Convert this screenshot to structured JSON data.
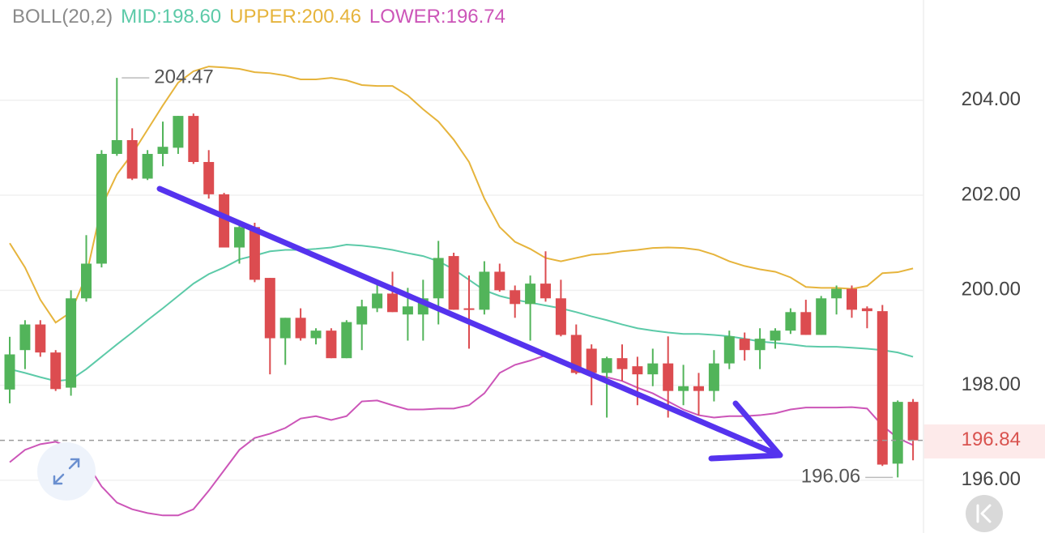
{
  "chart_data": {
    "type": "candlestick",
    "title": "BOLL(20,2)",
    "up_color": "#52b45a",
    "down_color": "#dc4c50",
    "open": [
      197.91,
      198.74,
      199.28,
      198.69,
      197.95,
      199.83,
      200.56,
      202.87,
      203.16,
      202.35,
      202.87,
      203.0,
      203.67,
      202.7,
      202.02,
      200.9,
      201.33,
      200.26,
      198.99,
      199.42,
      198.99,
      199.15,
      198.57,
      199.28,
      199.62,
      199.93,
      199.49,
      199.49,
      199.83,
      200.72,
      199.62,
      199.59,
      200.39,
      200.0,
      199.71,
      200.14,
      199.83,
      199.06,
      198.77,
      198.26,
      198.57,
      198.4,
      198.23,
      198.46,
      197.88,
      197.98,
      197.88,
      198.46,
      198.98,
      198.74,
      198.94,
      199.15,
      199.54,
      199.06,
      199.83,
      200.03,
      199.62,
      199.56,
      196.35,
      197.65
    ],
    "high": [
      199.02,
      199.37,
      199.37,
      198.74,
      200.0,
      201.16,
      202.95,
      204.47,
      203.41,
      202.95,
      203.55,
      203.67,
      203.72,
      202.95,
      202.05,
      201.37,
      201.42,
      200.26,
      199.42,
      199.62,
      199.2,
      199.2,
      199.37,
      199.8,
      200.22,
      200.39,
      200.05,
      200.22,
      201.04,
      200.79,
      200.31,
      200.61,
      200.56,
      200.1,
      200.31,
      200.82,
      200.22,
      199.28,
      198.86,
      198.6,
      198.86,
      198.6,
      198.77,
      199.03,
      198.43,
      198.26,
      198.74,
      199.15,
      199.11,
      199.2,
      199.2,
      199.62,
      199.8,
      199.88,
      200.1,
      200.1,
      199.66,
      199.69,
      197.68,
      197.71
    ],
    "low": [
      197.62,
      198.34,
      198.6,
      197.88,
      197.78,
      199.76,
      200.48,
      202.83,
      202.32,
      202.32,
      202.61,
      202.87,
      202.66,
      201.93,
      200.9,
      200.56,
      200.17,
      198.23,
      198.43,
      198.94,
      198.86,
      198.57,
      198.57,
      198.74,
      199.54,
      199.54,
      198.94,
      198.94,
      199.28,
      199.59,
      198.77,
      199.49,
      199.97,
      199.42,
      198.94,
      199.76,
      199.03,
      198.23,
      197.58,
      197.32,
      198.09,
      197.58,
      197.98,
      197.32,
      197.58,
      197.37,
      197.66,
      198.34,
      198.52,
      198.34,
      198.77,
      199.08,
      199.06,
      199.06,
      199.49,
      199.42,
      199.2,
      196.3,
      196.06,
      196.42
    ],
    "close": [
      198.65,
      199.28,
      198.69,
      197.92,
      199.83,
      200.56,
      202.87,
      203.16,
      202.35,
      202.87,
      203.02,
      203.67,
      202.7,
      202.02,
      200.9,
      201.33,
      200.22,
      198.99,
      199.42,
      198.99,
      199.15,
      198.57,
      199.33,
      199.66,
      199.93,
      199.54,
      199.66,
      199.83,
      200.68,
      199.59,
      199.59,
      200.39,
      200.0,
      199.71,
      200.14,
      199.83,
      199.06,
      198.26,
      198.26,
      198.57,
      198.34,
      198.23,
      198.46,
      197.88,
      197.98,
      197.88,
      198.46,
      199.03,
      198.74,
      198.98,
      199.15,
      199.54,
      199.06,
      199.83,
      200.03,
      199.59,
      199.56,
      196.33,
      197.65,
      196.84
    ],
    "overlays": [
      {
        "name": "MID:198.60",
        "color": "#5ccaa8",
        "values": [
          198.34,
          198.26,
          198.17,
          198.09,
          198.12,
          198.34,
          198.6,
          198.86,
          199.11,
          199.37,
          199.62,
          199.88,
          200.14,
          200.34,
          200.48,
          200.65,
          200.73,
          200.82,
          200.85,
          200.85,
          200.87,
          200.9,
          200.96,
          200.94,
          200.9,
          200.85,
          200.78,
          200.72,
          200.61,
          200.44,
          200.22,
          200.0,
          199.88,
          199.8,
          199.74,
          199.68,
          199.62,
          199.54,
          199.45,
          199.37,
          199.28,
          199.2,
          199.15,
          199.11,
          199.08,
          199.08,
          199.06,
          199.03,
          198.98,
          198.92,
          198.89,
          198.86,
          198.82,
          198.81,
          198.81,
          198.79,
          198.77,
          198.74,
          198.69,
          198.6
        ]
      },
      {
        "name": "UPPER:200.46",
        "color": "#e6b43c",
        "values": [
          200.99,
          200.48,
          199.8,
          199.32,
          199.54,
          200.31,
          201.76,
          202.44,
          202.87,
          203.38,
          203.89,
          204.37,
          204.61,
          204.71,
          204.69,
          204.66,
          204.59,
          204.57,
          204.52,
          204.44,
          204.44,
          204.47,
          204.42,
          204.32,
          204.3,
          204.3,
          204.1,
          203.81,
          203.55,
          203.17,
          202.7,
          201.93,
          201.33,
          201.02,
          200.87,
          200.68,
          200.61,
          200.68,
          200.75,
          200.77,
          200.82,
          200.85,
          200.89,
          200.9,
          200.89,
          200.85,
          200.75,
          200.61,
          200.51,
          200.44,
          200.39,
          200.27,
          200.07,
          200.05,
          200.05,
          200.03,
          200.09,
          200.36,
          200.38,
          200.46
        ]
      },
      {
        "name": "LOWER:196.74",
        "color": "#cc55b8",
        "values": [
          196.38,
          196.64,
          196.76,
          196.81,
          196.69,
          196.38,
          195.87,
          195.53,
          195.39,
          195.31,
          195.26,
          195.26,
          195.39,
          195.78,
          196.21,
          196.64,
          196.89,
          196.98,
          197.1,
          197.3,
          197.35,
          197.27,
          197.35,
          197.66,
          197.68,
          197.58,
          197.49,
          197.49,
          197.51,
          197.51,
          197.58,
          197.83,
          198.26,
          198.43,
          198.52,
          198.63,
          198.52,
          198.34,
          198.23,
          198.17,
          198.09,
          197.95,
          197.83,
          197.66,
          197.49,
          197.37,
          197.32,
          197.35,
          197.35,
          197.37,
          197.41,
          197.49,
          197.53,
          197.53,
          197.53,
          197.54,
          197.51,
          197.15,
          196.89,
          196.74
        ]
      }
    ],
    "ylim": [
      194.89,
      206.11
    ],
    "yticks": [
      {
        "value": 196,
        "label": "196.00"
      },
      {
        "value": 198,
        "label": "198.00"
      },
      {
        "value": 200,
        "label": "200.00"
      },
      {
        "value": 202,
        "label": "202.00"
      },
      {
        "value": 204,
        "label": "204.00"
      }
    ],
    "grid": true,
    "max_high": 204.47,
    "min_low": 196.06,
    "last_price": 196.84
  }
}
